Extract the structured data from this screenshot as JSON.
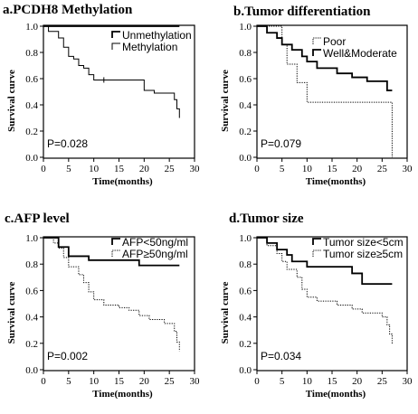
{
  "chart_data": [
    {
      "type": "line",
      "title": "a.PCDH8 Methylation",
      "xlabel": "Time(months)",
      "ylabel": "Survival curve",
      "xlim": [
        0,
        30
      ],
      "ylim": [
        0,
        1
      ],
      "xticks": [
        "0",
        "5",
        "10",
        "15",
        "20",
        "25",
        "30"
      ],
      "yticks": [
        "0.0",
        "0.2",
        "0.4",
        "0.6",
        "0.8",
        "1.0"
      ],
      "pvalue": "P=0.028",
      "series": [
        {
          "name": "Unmethylation",
          "style": "solid",
          "thick": true,
          "censor": [],
          "steps": [
            [
              0,
              1.0
            ],
            [
              27,
              1.0
            ]
          ]
        },
        {
          "name": "Methylation",
          "style": "solid",
          "thick": false,
          "censor": [
            [
              12,
              0.59
            ]
          ],
          "steps": [
            [
              0,
              1.0
            ],
            [
              1,
              0.96
            ],
            [
              3,
              0.91
            ],
            [
              4,
              0.84
            ],
            [
              5,
              0.77
            ],
            [
              6,
              0.75
            ],
            [
              7,
              0.7
            ],
            [
              8,
              0.68
            ],
            [
              9,
              0.63
            ],
            [
              10,
              0.59
            ],
            [
              20,
              0.51
            ],
            [
              22,
              0.49
            ],
            [
              26,
              0.44
            ],
            [
              26.5,
              0.37
            ],
            [
              27,
              0.3
            ]
          ]
        }
      ]
    },
    {
      "type": "line",
      "title": "b.Tumor differentiation",
      "xlabel": "Time(months)",
      "ylabel": "Survival curve",
      "xlim": [
        0,
        30
      ],
      "ylim": [
        0,
        1
      ],
      "xticks": [
        "0",
        "5",
        "10",
        "15",
        "20",
        "25",
        "30"
      ],
      "yticks": [
        "0.0",
        "0.2",
        "0.4",
        "0.6",
        "0.8",
        "1.0"
      ],
      "pvalue": "P=0.079",
      "series": [
        {
          "name": "Poor",
          "style": "dotted",
          "thick": false,
          "censor": [],
          "steps": [
            [
              0,
              1.0
            ],
            [
              5,
              0.86
            ],
            [
              6,
              0.71
            ],
            [
              8,
              0.57
            ],
            [
              10,
              0.42
            ],
            [
              27,
              0.0
            ]
          ]
        },
        {
          "name": "Well&Moderate",
          "style": "solid",
          "thick": true,
          "censor": [],
          "steps": [
            [
              0,
              1.0
            ],
            [
              2,
              0.95
            ],
            [
              4,
              0.91
            ],
            [
              5,
              0.86
            ],
            [
              7,
              0.82
            ],
            [
              9,
              0.77
            ],
            [
              10,
              0.73
            ],
            [
              12,
              0.68
            ],
            [
              16,
              0.64
            ],
            [
              19,
              0.61
            ],
            [
              22,
              0.58
            ],
            [
              26,
              0.51
            ],
            [
              27,
              0.51
            ]
          ]
        }
      ]
    },
    {
      "type": "line",
      "title": "c.AFP level",
      "xlabel": "Time(months)",
      "ylabel": "Survival curve",
      "xlim": [
        0,
        30
      ],
      "ylim": [
        0,
        1
      ],
      "xticks": [
        "0",
        "5",
        "10",
        "15",
        "20",
        "25",
        "30"
      ],
      "yticks": [
        "0.0",
        "0.2",
        "0.4",
        "0.6",
        "0.8",
        "1.0"
      ],
      "pvalue": "P=0.002",
      "series": [
        {
          "name": "AFP<50ng/ml",
          "style": "solid",
          "thick": true,
          "censor": [],
          "steps": [
            [
              0,
              1.0
            ],
            [
              3,
              0.93
            ],
            [
              5,
              0.86
            ],
            [
              9,
              0.83
            ],
            [
              19,
              0.79
            ],
            [
              27,
              0.79
            ]
          ]
        },
        {
          "name": "AFP≥50ng/ml",
          "style": "dotted",
          "thick": false,
          "censor": [],
          "steps": [
            [
              0,
              1.0
            ],
            [
              2,
              0.96
            ],
            [
              3,
              0.92
            ],
            [
              4,
              0.85
            ],
            [
              5,
              0.78
            ],
            [
              7,
              0.72
            ],
            [
              8,
              0.66
            ],
            [
              9,
              0.59
            ],
            [
              10,
              0.53
            ],
            [
              12,
              0.49
            ],
            [
              15,
              0.47
            ],
            [
              17,
              0.45
            ],
            [
              19,
              0.41
            ],
            [
              21,
              0.38
            ],
            [
              24,
              0.35
            ],
            [
              26,
              0.29
            ],
            [
              26.5,
              0.21
            ],
            [
              27,
              0.14
            ]
          ]
        }
      ]
    },
    {
      "type": "line",
      "title": "d.Tumor size",
      "xlabel": "Time(months)",
      "ylabel": "Survival curve",
      "xlim": [
        0,
        30
      ],
      "ylim": [
        0,
        1
      ],
      "xticks": [
        "0",
        "5",
        "10",
        "15",
        "20",
        "25",
        "30"
      ],
      "yticks": [
        "0.0",
        "0.2",
        "0.4",
        "0.6",
        "0.8",
        "1.0"
      ],
      "pvalue": "P=0.034",
      "series": [
        {
          "name": "Tumor size<5cm",
          "style": "solid",
          "thick": true,
          "censor": [],
          "steps": [
            [
              0,
              1.0
            ],
            [
              2,
              0.96
            ],
            [
              4,
              0.91
            ],
            [
              6,
              0.87
            ],
            [
              7,
              0.82
            ],
            [
              10,
              0.78
            ],
            [
              19,
              0.73
            ],
            [
              21,
              0.65
            ],
            [
              27,
              0.65
            ]
          ]
        },
        {
          "name": "Tumor size≥5cm",
          "style": "dotted",
          "thick": false,
          "censor": [],
          "steps": [
            [
              0,
              1.0
            ],
            [
              2,
              0.94
            ],
            [
              4,
              0.88
            ],
            [
              5,
              0.82
            ],
            [
              6,
              0.76
            ],
            [
              8,
              0.7
            ],
            [
              9,
              0.61
            ],
            [
              10,
              0.55
            ],
            [
              12,
              0.52
            ],
            [
              16,
              0.49
            ],
            [
              19,
              0.46
            ],
            [
              21,
              0.43
            ],
            [
              25,
              0.4
            ],
            [
              26,
              0.34
            ],
            [
              26.5,
              0.27
            ],
            [
              27,
              0.19
            ]
          ]
        }
      ]
    }
  ]
}
